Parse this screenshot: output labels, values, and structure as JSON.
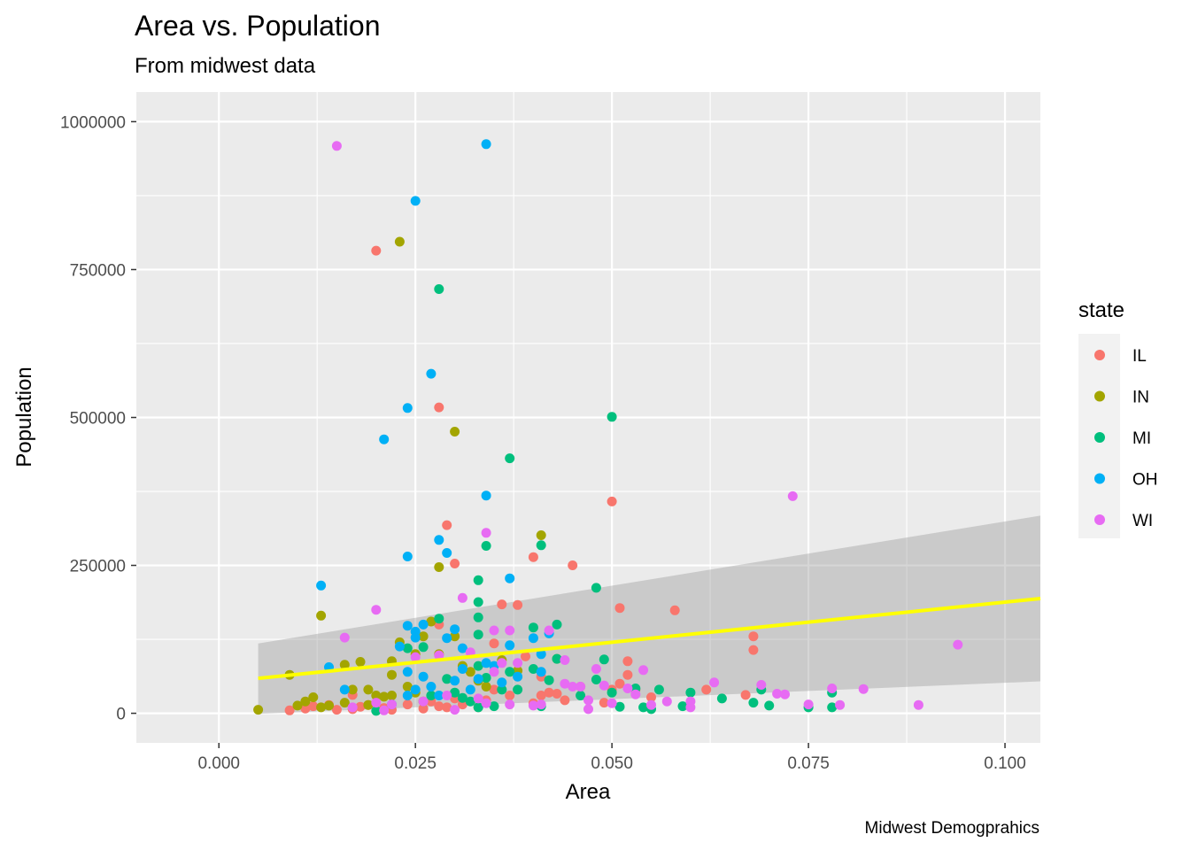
{
  "chart_data": {
    "type": "scatter",
    "title": "Area vs. Population",
    "subtitle": "From midwest data",
    "xlabel": "Area",
    "ylabel": "Population",
    "caption": "Midwest Demogprahics",
    "xlim": [
      -0.0105,
      0.1045
    ],
    "ylim": [
      -50000,
      1050000
    ],
    "x_ticks": [
      0.0,
      0.025,
      0.05,
      0.075,
      0.1
    ],
    "x_tick_labels": [
      "0.000",
      "0.025",
      "0.050",
      "0.075",
      "0.100"
    ],
    "y_ticks": [
      0,
      250000,
      500000,
      750000,
      1000000
    ],
    "y_tick_labels": [
      "0",
      "250000",
      "500000",
      "750000",
      "1000000"
    ],
    "grid": true,
    "legend": {
      "title": "state",
      "position": "right"
    },
    "trend_line": {
      "color": "#FFFF00",
      "x": [
        0.005,
        0.1045
      ],
      "y": [
        59000,
        194000
      ],
      "ci_upper": [
        118000,
        334000
      ],
      "ci_lower": [
        -1000,
        54000
      ],
      "ci_color": "#999999"
    },
    "series": [
      {
        "name": "IL",
        "color": "#F8766D",
        "points": [
          [
            0.009,
            5000
          ],
          [
            0.011,
            8000
          ],
          [
            0.012,
            12000
          ],
          [
            0.014,
            14000
          ],
          [
            0.015,
            6000
          ],
          [
            0.017,
            31000
          ],
          [
            0.017,
            7000
          ],
          [
            0.018,
            11000
          ],
          [
            0.019,
            14000
          ],
          [
            0.02,
            782000
          ],
          [
            0.021,
            9000
          ],
          [
            0.022,
            6000
          ],
          [
            0.024,
            15000
          ],
          [
            0.026,
            8000
          ],
          [
            0.027,
            20000
          ],
          [
            0.028,
            517000
          ],
          [
            0.028,
            150000
          ],
          [
            0.028,
            12000
          ],
          [
            0.029,
            318000
          ],
          [
            0.029,
            10000
          ],
          [
            0.03,
            253000
          ],
          [
            0.03,
            25000
          ],
          [
            0.031,
            15000
          ],
          [
            0.033,
            10000
          ],
          [
            0.034,
            22000
          ],
          [
            0.035,
            118000
          ],
          [
            0.035,
            40000
          ],
          [
            0.036,
            184000
          ],
          [
            0.037,
            30000
          ],
          [
            0.038,
            183000
          ],
          [
            0.039,
            96000
          ],
          [
            0.04,
            264000
          ],
          [
            0.04,
            17000
          ],
          [
            0.041,
            62000
          ],
          [
            0.041,
            30000
          ],
          [
            0.042,
            35000
          ],
          [
            0.043,
            33000
          ],
          [
            0.044,
            22000
          ],
          [
            0.045,
            250000
          ],
          [
            0.046,
            45000
          ],
          [
            0.049,
            18000
          ],
          [
            0.05,
            358000
          ],
          [
            0.05,
            40000
          ],
          [
            0.051,
            178000
          ],
          [
            0.051,
            50000
          ],
          [
            0.052,
            88000
          ],
          [
            0.052,
            65000
          ],
          [
            0.053,
            40000
          ],
          [
            0.055,
            27000
          ],
          [
            0.058,
            174000
          ],
          [
            0.062,
            40000
          ],
          [
            0.067,
            31000
          ],
          [
            0.068,
            130000
          ],
          [
            0.068,
            107000
          ]
        ]
      },
      {
        "name": "IN",
        "color": "#A3A500",
        "points": [
          [
            0.005,
            6000
          ],
          [
            0.009,
            65000
          ],
          [
            0.01,
            13000
          ],
          [
            0.011,
            20000
          ],
          [
            0.012,
            27000
          ],
          [
            0.013,
            165000
          ],
          [
            0.013,
            10000
          ],
          [
            0.014,
            13000
          ],
          [
            0.016,
            82000
          ],
          [
            0.016,
            18000
          ],
          [
            0.017,
            40000
          ],
          [
            0.018,
            87000
          ],
          [
            0.019,
            14000
          ],
          [
            0.019,
            40000
          ],
          [
            0.02,
            30000
          ],
          [
            0.021,
            28000
          ],
          [
            0.022,
            88000
          ],
          [
            0.022,
            65000
          ],
          [
            0.022,
            30000
          ],
          [
            0.023,
            797000
          ],
          [
            0.023,
            120000
          ],
          [
            0.024,
            45000
          ],
          [
            0.025,
            100000
          ],
          [
            0.025,
            35000
          ],
          [
            0.026,
            130000
          ],
          [
            0.026,
            20000
          ],
          [
            0.027,
            155000
          ],
          [
            0.028,
            247000
          ],
          [
            0.028,
            100000
          ],
          [
            0.03,
            476000
          ],
          [
            0.03,
            130000
          ],
          [
            0.031,
            80000
          ],
          [
            0.032,
            70000
          ],
          [
            0.033,
            55000
          ],
          [
            0.034,
            45000
          ],
          [
            0.036,
            90000
          ],
          [
            0.038,
            72000
          ],
          [
            0.041,
            301000
          ],
          [
            0.043,
            92000
          ]
        ]
      },
      {
        "name": "MI",
        "color": "#00BF7D",
        "points": [
          [
            0.02,
            4000
          ],
          [
            0.024,
            110000
          ],
          [
            0.026,
            112000
          ],
          [
            0.027,
            30000
          ],
          [
            0.028,
            717000
          ],
          [
            0.028,
            160000
          ],
          [
            0.029,
            58000
          ],
          [
            0.03,
            35000
          ],
          [
            0.031,
            26000
          ],
          [
            0.032,
            20000
          ],
          [
            0.033,
            225000
          ],
          [
            0.033,
            188000
          ],
          [
            0.033,
            162000
          ],
          [
            0.033,
            133000
          ],
          [
            0.033,
            80000
          ],
          [
            0.033,
            10000
          ],
          [
            0.034,
            283000
          ],
          [
            0.034,
            60000
          ],
          [
            0.035,
            12000
          ],
          [
            0.036,
            40000
          ],
          [
            0.037,
            431000
          ],
          [
            0.037,
            70000
          ],
          [
            0.038,
            40000
          ],
          [
            0.04,
            145000
          ],
          [
            0.04,
            75000
          ],
          [
            0.041,
            284000
          ],
          [
            0.041,
            12000
          ],
          [
            0.042,
            56000
          ],
          [
            0.043,
            150000
          ],
          [
            0.043,
            92000
          ],
          [
            0.046,
            30000
          ],
          [
            0.048,
            212000
          ],
          [
            0.048,
            57000
          ],
          [
            0.049,
            91000
          ],
          [
            0.05,
            501000
          ],
          [
            0.05,
            35000
          ],
          [
            0.051,
            11000
          ],
          [
            0.053,
            42000
          ],
          [
            0.054,
            10000
          ],
          [
            0.055,
            7000
          ],
          [
            0.056,
            40000
          ],
          [
            0.059,
            12000
          ],
          [
            0.06,
            35000
          ],
          [
            0.064,
            25000
          ],
          [
            0.068,
            18000
          ],
          [
            0.069,
            40000
          ],
          [
            0.07,
            13000
          ],
          [
            0.075,
            10000
          ],
          [
            0.078,
            35000
          ],
          [
            0.078,
            10000
          ]
        ]
      },
      {
        "name": "OH",
        "color": "#00B0F6",
        "points": [
          [
            0.013,
            216000
          ],
          [
            0.014,
            78000
          ],
          [
            0.016,
            40000
          ],
          [
            0.021,
            463000
          ],
          [
            0.022,
            15000
          ],
          [
            0.023,
            113000
          ],
          [
            0.024,
            516000
          ],
          [
            0.024,
            265000
          ],
          [
            0.024,
            148000
          ],
          [
            0.024,
            70000
          ],
          [
            0.024,
            30000
          ],
          [
            0.025,
            866000
          ],
          [
            0.025,
            138000
          ],
          [
            0.025,
            128000
          ],
          [
            0.025,
            40000
          ],
          [
            0.026,
            150000
          ],
          [
            0.026,
            62000
          ],
          [
            0.027,
            574000
          ],
          [
            0.027,
            45000
          ],
          [
            0.028,
            293000
          ],
          [
            0.028,
            30000
          ],
          [
            0.029,
            271000
          ],
          [
            0.029,
            127000
          ],
          [
            0.03,
            142000
          ],
          [
            0.03,
            55000
          ],
          [
            0.031,
            110000
          ],
          [
            0.031,
            75000
          ],
          [
            0.032,
            40000
          ],
          [
            0.033,
            58000
          ],
          [
            0.034,
            962000
          ],
          [
            0.034,
            368000
          ],
          [
            0.034,
            85000
          ],
          [
            0.035,
            80000
          ],
          [
            0.036,
            52000
          ],
          [
            0.037,
            228000
          ],
          [
            0.037,
            115000
          ],
          [
            0.038,
            62000
          ],
          [
            0.04,
            127000
          ],
          [
            0.041,
            100000
          ],
          [
            0.041,
            70000
          ],
          [
            0.042,
            135000
          ]
        ]
      },
      {
        "name": "WI",
        "color": "#E76BF3",
        "points": [
          [
            0.015,
            959000
          ],
          [
            0.016,
            128000
          ],
          [
            0.017,
            10000
          ],
          [
            0.02,
            175000
          ],
          [
            0.02,
            18000
          ],
          [
            0.021,
            5000
          ],
          [
            0.022,
            15000
          ],
          [
            0.025,
            95000
          ],
          [
            0.026,
            20000
          ],
          [
            0.028,
            98000
          ],
          [
            0.029,
            30000
          ],
          [
            0.03,
            6000
          ],
          [
            0.031,
            195000
          ],
          [
            0.032,
            103000
          ],
          [
            0.033,
            25000
          ],
          [
            0.034,
            305000
          ],
          [
            0.034,
            17000
          ],
          [
            0.035,
            140000
          ],
          [
            0.035,
            70000
          ],
          [
            0.036,
            85000
          ],
          [
            0.037,
            140000
          ],
          [
            0.037,
            15000
          ],
          [
            0.038,
            85000
          ],
          [
            0.04,
            13000
          ],
          [
            0.041,
            15000
          ],
          [
            0.042,
            140000
          ],
          [
            0.044,
            90000
          ],
          [
            0.044,
            50000
          ],
          [
            0.045,
            45000
          ],
          [
            0.046,
            45000
          ],
          [
            0.047,
            22000
          ],
          [
            0.047,
            7000
          ],
          [
            0.048,
            75000
          ],
          [
            0.049,
            47000
          ],
          [
            0.05,
            17000
          ],
          [
            0.052,
            42000
          ],
          [
            0.053,
            32000
          ],
          [
            0.054,
            73000
          ],
          [
            0.055,
            14000
          ],
          [
            0.057,
            20000
          ],
          [
            0.06,
            20000
          ],
          [
            0.06,
            10000
          ],
          [
            0.063,
            52000
          ],
          [
            0.069,
            48000
          ],
          [
            0.071,
            33000
          ],
          [
            0.072,
            32000
          ],
          [
            0.073,
            367000
          ],
          [
            0.075,
            15000
          ],
          [
            0.078,
            42000
          ],
          [
            0.079,
            14000
          ],
          [
            0.082,
            41000
          ],
          [
            0.089,
            14000
          ],
          [
            0.094,
            116000
          ]
        ]
      }
    ]
  }
}
